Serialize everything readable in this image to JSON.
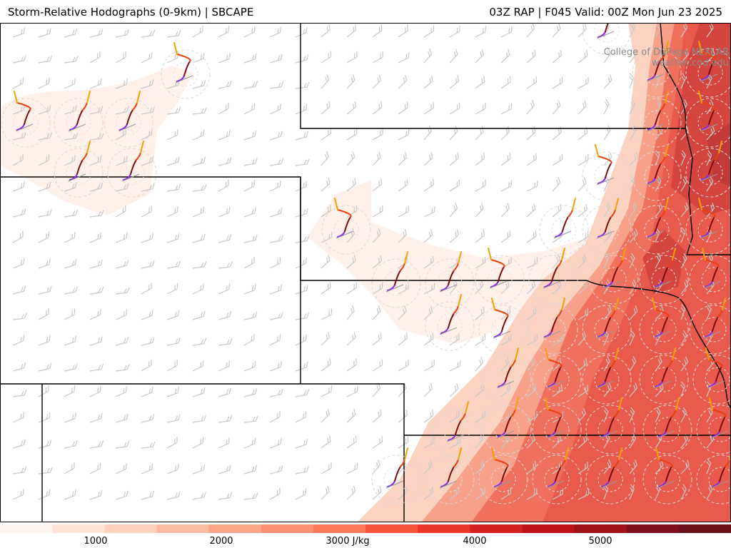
{
  "header": {
    "title": "Storm-Relative Hodographs (0-9km) | SBCAPE",
    "run_info": "03Z RAP | F045 Valid: 00Z Mon Jun 23 2025"
  },
  "credit": {
    "line1": "College of DuPage NEXLAB",
    "line2": "weather.cod.edu"
  },
  "colorbar": {
    "labels": [
      "1000",
      "2000",
      "3000 J/kg",
      "4000",
      "5000"
    ],
    "colors": [
      "#fff5f0",
      "#fee4d8",
      "#fdd0bc",
      "#fcbba1",
      "#fca689",
      "#fc9070",
      "#fb7a5a",
      "#f6553c",
      "#eb372a",
      "#d42121",
      "#bc141a",
      "#a11218",
      "#80101b",
      "#6b0f1a"
    ]
  },
  "map": {
    "cape_color_light": "#fde0d2",
    "cape_color_mid": "#f4715e",
    "cape_color_high": "#c93a3e",
    "barb_color": "#c8c8c8",
    "hodograph_colors": [
      "#8a2be2",
      "#7a0a0a",
      "#e8410f",
      "#f5a000"
    ]
  }
}
